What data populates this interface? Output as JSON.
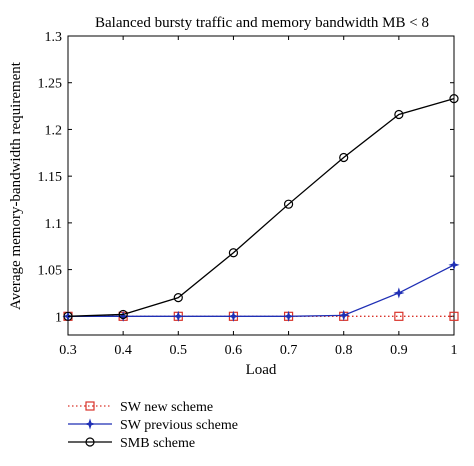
{
  "chart_data": {
    "type": "line",
    "title": "Balanced bursty traffic and memory bandwidth MB < 8",
    "xlabel": "Load",
    "ylabel": "Average memory-bandwidth requirement",
    "x": [
      0.3,
      0.4,
      0.5,
      0.6,
      0.7,
      0.8,
      0.9,
      1.0
    ],
    "xlim": [
      0.3,
      1.0
    ],
    "ylim": [
      0.98,
      1.3
    ],
    "xticks": [
      "0.3",
      "0.4",
      "0.5",
      "0.6",
      "0.7",
      "0.8",
      "0.9",
      "1"
    ],
    "yticks": [
      "1",
      "1.05",
      "1.1",
      "1.15",
      "1.2",
      "1.25",
      "1.3"
    ],
    "grid": false,
    "legend_position": "bottom-left-outside",
    "series": [
      {
        "name": "SW new scheme",
        "values": [
          1.0,
          1.0,
          1.0,
          1.0,
          1.0,
          1.0,
          1.0,
          1.0
        ],
        "color": "#d9342b",
        "marker": "square",
        "line": "dotted"
      },
      {
        "name": "SW previous scheme",
        "values": [
          1.0,
          1.0,
          1.0,
          1.0,
          1.0,
          1.001,
          1.025,
          1.055
        ],
        "color": "#1f2fb5",
        "marker": "star",
        "line": "solid"
      },
      {
        "name": "SMB scheme",
        "values": [
          1.0,
          1.002,
          1.02,
          1.068,
          1.12,
          1.17,
          1.216,
          1.233
        ],
        "color": "#000000",
        "marker": "circle",
        "line": "solid"
      }
    ]
  }
}
